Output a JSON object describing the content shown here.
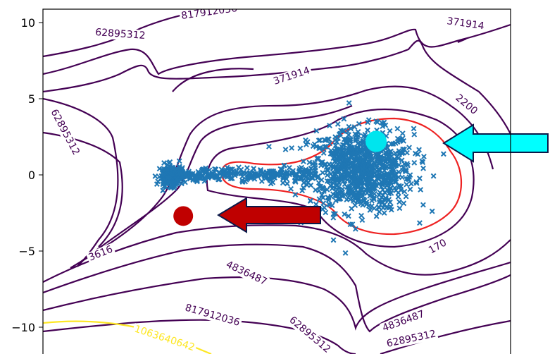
{
  "chart_data": {
    "type": "contour",
    "title": "",
    "xlabel": "",
    "ylabel": "",
    "xlim": [
      -12,
      12
    ],
    "ylim": [
      -11,
      11
    ],
    "yticks": [
      10,
      5,
      0,
      -5,
      -10
    ],
    "ytick_labels": [
      "10",
      "5",
      "0",
      "−5",
      "−10"
    ],
    "grid": false,
    "colors": {
      "contour_dark": "#440154",
      "contour_top": "#fde725",
      "boundary": "#ee2222",
      "samples": "#1f77b4",
      "start_marker": "#c00000",
      "end_marker": "#00e5ee"
    },
    "contour_labels": [
      "817912036",
      "62895312",
      "371914",
      "62895312",
      "2200",
      "371914",
      "170",
      "4836487",
      "817912036",
      "62895312",
      "4836487",
      "62895312",
      "1063640642",
      "3616"
    ],
    "points": {
      "start": {
        "x": -4.8,
        "y": -2.7
      },
      "end": {
        "x": 5.1,
        "y": 2.2
      }
    },
    "annotations": [
      {
        "type": "arrow",
        "direction": "left",
        "color": "#bf0000",
        "target": "start"
      },
      {
        "type": "arrow",
        "direction": "left",
        "color": "#00ffff",
        "target": "end"
      }
    ],
    "samples": {
      "description_free": true,
      "shape": "cluster_with_stem",
      "cluster_center": [
        4.3,
        0.3
      ],
      "stem_from_x": -5.5,
      "stem_to_x": 2.0,
      "stem_y": 0.0
    }
  }
}
